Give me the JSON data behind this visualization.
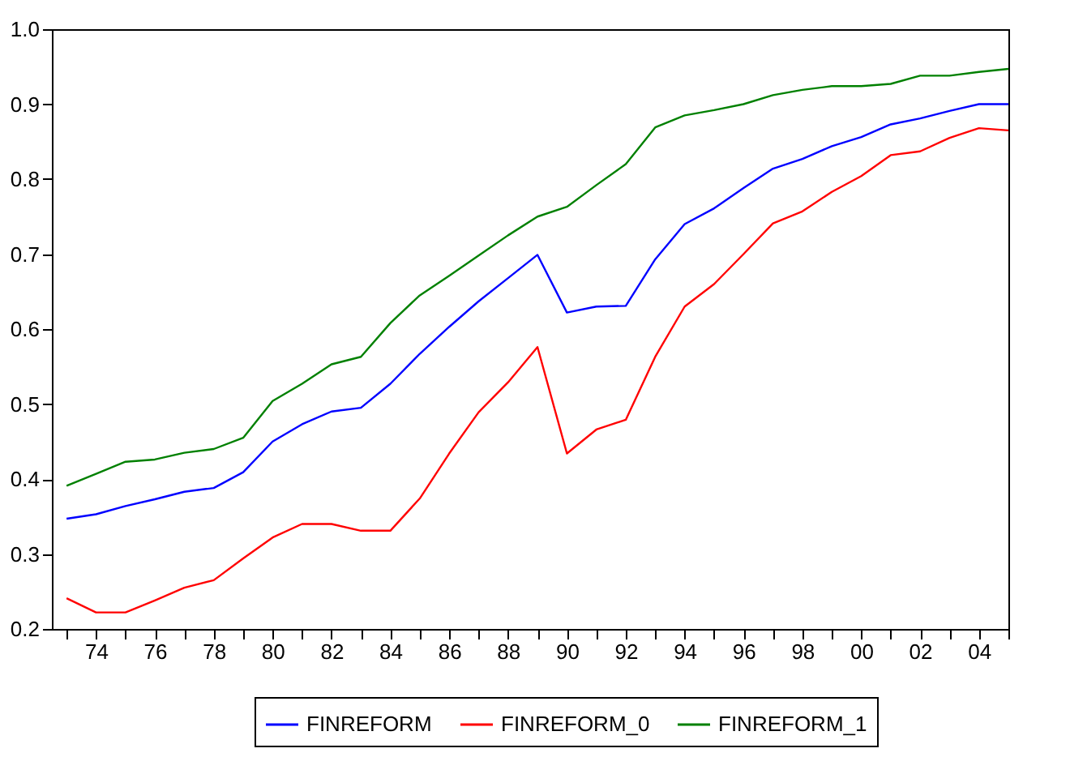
{
  "chart_data": {
    "type": "line",
    "x": [
      1973,
      1974,
      1975,
      1976,
      1977,
      1978,
      1979,
      1980,
      1981,
      1982,
      1983,
      1984,
      1985,
      1986,
      1987,
      1988,
      1989,
      1990,
      1991,
      1992,
      1993,
      1994,
      1995,
      1996,
      1997,
      1998,
      1999,
      2000,
      2001,
      2002,
      2003,
      2004,
      2005
    ],
    "series": [
      {
        "name": "FINREFORM",
        "color": "#0000ff",
        "values": [
          0.347,
          0.353,
          0.364,
          0.373,
          0.383,
          0.388,
          0.409,
          0.45,
          0.473,
          0.49,
          0.495,
          0.527,
          0.567,
          0.603,
          0.637,
          0.668,
          0.699,
          0.622,
          0.63,
          0.631,
          0.693,
          0.74,
          0.761,
          0.788,
          0.814,
          0.827,
          0.844,
          0.856,
          0.873,
          0.881,
          0.891,
          0.9,
          0.9
        ]
      },
      {
        "name": "FINREFORM_0",
        "color": "#ff0000",
        "values": [
          0.241,
          0.222,
          0.222,
          0.238,
          0.255,
          0.265,
          0.294,
          0.322,
          0.34,
          0.34,
          0.331,
          0.331,
          0.374,
          0.434,
          0.489,
          0.529,
          0.576,
          0.434,
          0.466,
          0.479,
          0.563,
          0.63,
          0.66,
          0.7,
          0.741,
          0.757,
          0.783,
          0.804,
          0.832,
          0.837,
          0.855,
          0.868,
          0.865
        ]
      },
      {
        "name": "FINREFORM_1",
        "color": "#008000",
        "values": [
          0.391,
          0.407,
          0.423,
          0.426,
          0.435,
          0.44,
          0.455,
          0.504,
          0.527,
          0.553,
          0.563,
          0.608,
          0.645,
          0.671,
          0.698,
          0.725,
          0.75,
          0.763,
          0.792,
          0.82,
          0.869,
          0.885,
          0.892,
          0.9,
          0.912,
          0.919,
          0.924,
          0.924,
          0.927,
          0.938,
          0.938,
          0.943,
          0.947
        ]
      }
    ],
    "xlim": [
      1972.5,
      2005
    ],
    "xticks": [
      {
        "value": 1973,
        "label": null
      },
      {
        "value": 1974,
        "label": "74"
      },
      {
        "value": 1975,
        "label": null
      },
      {
        "value": 1976,
        "label": "76"
      },
      {
        "value": 1977,
        "label": null
      },
      {
        "value": 1978,
        "label": "78"
      },
      {
        "value": 1979,
        "label": null
      },
      {
        "value": 1980,
        "label": "80"
      },
      {
        "value": 1981,
        "label": null
      },
      {
        "value": 1982,
        "label": "82"
      },
      {
        "value": 1983,
        "label": null
      },
      {
        "value": 1984,
        "label": "84"
      },
      {
        "value": 1985,
        "label": null
      },
      {
        "value": 1986,
        "label": "86"
      },
      {
        "value": 1987,
        "label": null
      },
      {
        "value": 1988,
        "label": "88"
      },
      {
        "value": 1989,
        "label": null
      },
      {
        "value": 1990,
        "label": "90"
      },
      {
        "value": 1991,
        "label": null
      },
      {
        "value": 1992,
        "label": "92"
      },
      {
        "value": 1993,
        "label": null
      },
      {
        "value": 1994,
        "label": "94"
      },
      {
        "value": 1995,
        "label": null
      },
      {
        "value": 1996,
        "label": "96"
      },
      {
        "value": 1997,
        "label": null
      },
      {
        "value": 1998,
        "label": "98"
      },
      {
        "value": 1999,
        "label": null
      },
      {
        "value": 2000,
        "label": "00"
      },
      {
        "value": 2001,
        "label": null
      },
      {
        "value": 2002,
        "label": "02"
      },
      {
        "value": 2003,
        "label": null
      },
      {
        "value": 2004,
        "label": "04"
      },
      {
        "value": 2005,
        "label": null
      }
    ],
    "ylim": [
      0.2,
      1.0
    ],
    "yticks": [
      0.2,
      0.3,
      0.4,
      0.5,
      0.6,
      0.7,
      0.8,
      0.9,
      {
        "value": 1.0,
        "label": "1.0"
      }
    ],
    "grid": false,
    "legend": "bottom",
    "marker": "none",
    "line_style": "solid"
  }
}
